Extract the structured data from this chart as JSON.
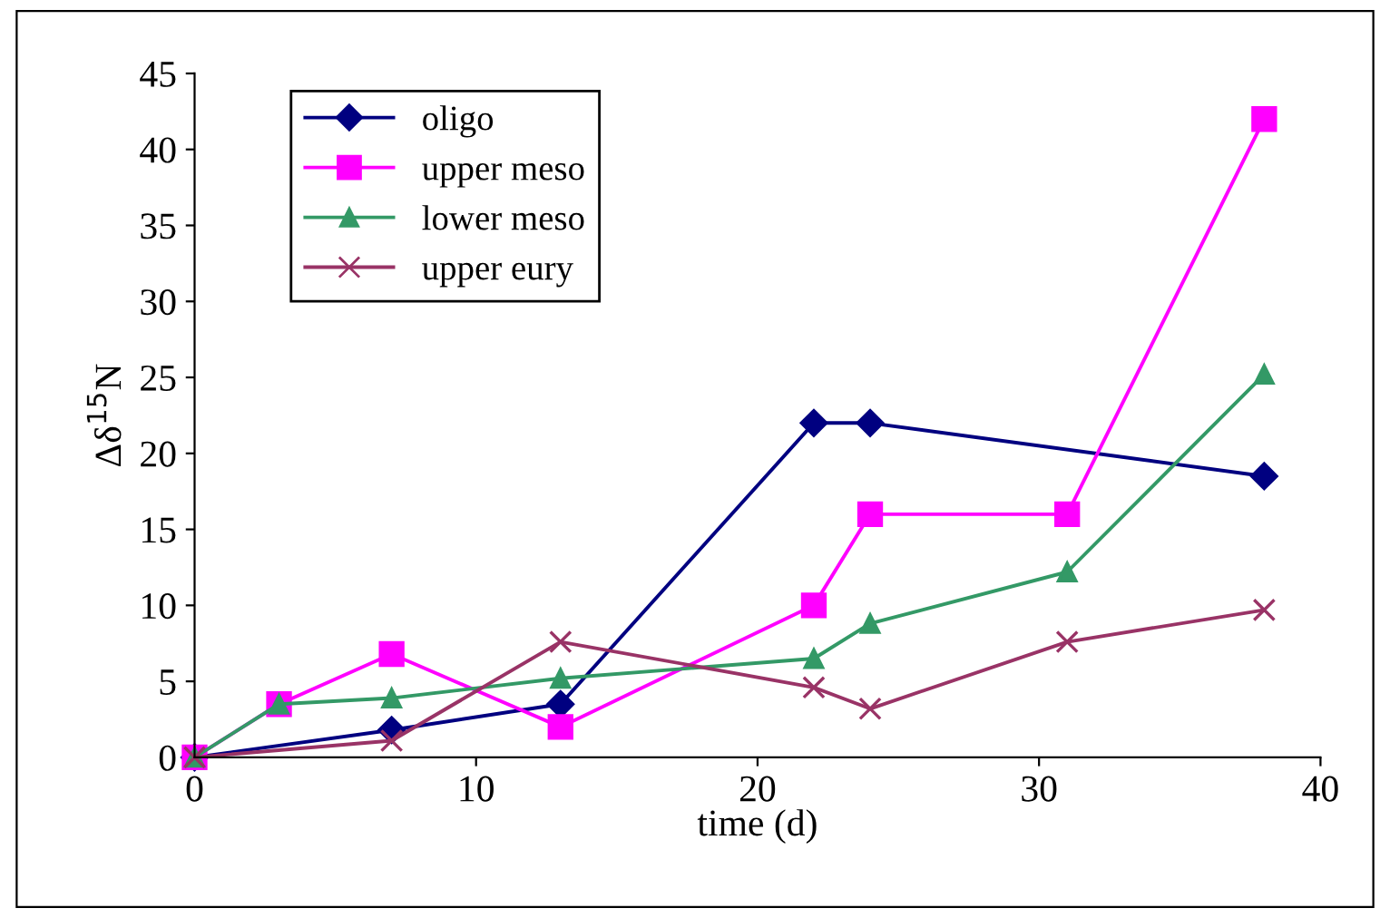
{
  "chart_data": {
    "type": "line",
    "xlabel": "time (d)",
    "ylabel": "Δδ$^{15}$N",
    "xlim": [
      0,
      40
    ],
    "xticks": [
      0,
      10,
      20,
      30,
      40
    ],
    "ylim": [
      0,
      45
    ],
    "yticks": [
      0,
      5,
      10,
      15,
      20,
      25,
      30,
      35,
      40,
      45
    ],
    "grid": false,
    "legend": "top left",
    "line_style": "solid",
    "series": [
      {
        "name": "oligo",
        "color": "#000080",
        "marker": "diamond",
        "x": [
          0,
          7,
          13,
          22,
          24,
          38
        ],
        "values": [
          0,
          1.8,
          3.5,
          22,
          22,
          18.5
        ]
      },
      {
        "name": "upper meso",
        "color": "#ff00ff",
        "marker": "square",
        "x": [
          0,
          3,
          7,
          13,
          22,
          24,
          31,
          38
        ],
        "values": [
          0,
          3.5,
          6.8,
          2,
          10,
          16,
          16,
          42
        ]
      },
      {
        "name": "lower meso",
        "color": "#339966",
        "marker": "triangle",
        "x": [
          0,
          3,
          7,
          13,
          22,
          24,
          31,
          38
        ],
        "values": [
          0,
          3.5,
          3.9,
          5.2,
          6.5,
          8.8,
          12.2,
          25.2
        ]
      },
      {
        "name": "upper eury",
        "color": "#993366",
        "marker": "cross",
        "x": [
          0,
          7,
          13,
          22,
          24,
          31,
          38
        ],
        "values": [
          0,
          1.1,
          7.6,
          4.6,
          3.2,
          7.6,
          9.7
        ]
      }
    ]
  }
}
